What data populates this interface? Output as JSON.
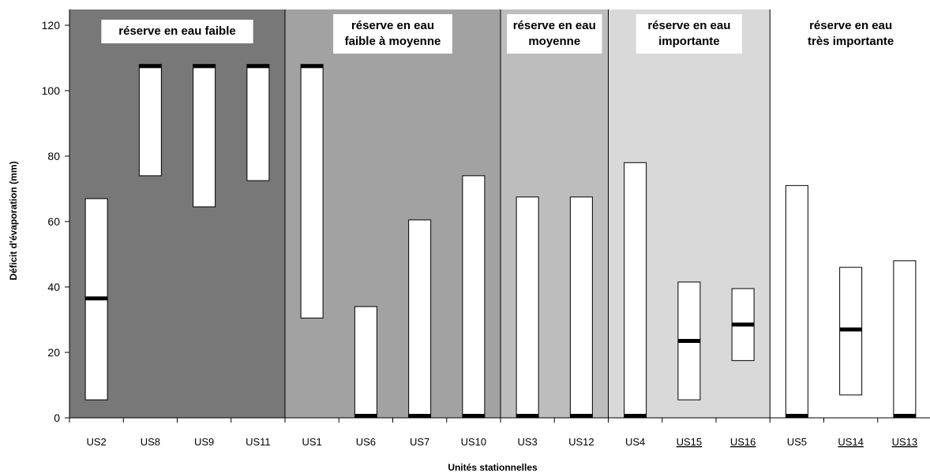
{
  "chart_data": {
    "type": "bar",
    "subtype": "floating-range",
    "ylabel": "Déficit d'évaporation  (mm)",
    "xlabel": "Unités stationnelles",
    "ylim": [
      0,
      120
    ],
    "yticks": [
      0,
      20,
      40,
      60,
      80,
      100,
      120
    ],
    "grid": false,
    "groups": [
      {
        "label_lines": [
          "réserve en eau faible"
        ],
        "label_box": true,
        "color": "#787878",
        "categories": [
          "US2",
          "US8",
          "US9",
          "US11"
        ]
      },
      {
        "label_lines": [
          "réserve en eau",
          "faible à moyenne"
        ],
        "label_box": true,
        "color": "#a2a2a2",
        "categories": [
          "US1",
          "US6",
          "US7",
          "US10"
        ]
      },
      {
        "label_lines": [
          "réserve en eau",
          "moyenne"
        ],
        "label_box": true,
        "color": "#bdbdbd",
        "categories": [
          "US3",
          "US12"
        ]
      },
      {
        "label_lines": [
          "réserve en eau",
          "importante"
        ],
        "label_box": true,
        "color": "#d9d9d9",
        "categories": [
          "US4",
          "US15",
          "US16"
        ]
      },
      {
        "label_lines": [
          "réserve en eau",
          "très importante"
        ],
        "label_box": false,
        "color": "#ffffff",
        "categories": [
          "US5",
          "US14",
          "US13"
        ]
      }
    ],
    "bars": [
      {
        "category": "US2",
        "low": 5.5,
        "high": 67,
        "marker": 36.5,
        "underlined": false
      },
      {
        "category": "US8",
        "low": 74,
        "high": 108,
        "marker": 107.5,
        "underlined": false
      },
      {
        "category": "US9",
        "low": 64.5,
        "high": 108,
        "marker": 107.5,
        "underlined": false
      },
      {
        "category": "US11",
        "low": 72.5,
        "high": 108,
        "marker": 107.5,
        "underlined": false
      },
      {
        "category": "US1",
        "low": 30.5,
        "high": 108,
        "marker": 107.5,
        "underlined": false
      },
      {
        "category": "US6",
        "low": 0,
        "high": 34,
        "marker": 0,
        "underlined": false
      },
      {
        "category": "US7",
        "low": 0,
        "high": 60.5,
        "marker": 0,
        "underlined": false
      },
      {
        "category": "US10",
        "low": 0,
        "high": 74,
        "marker": 0,
        "underlined": false
      },
      {
        "category": "US3",
        "low": 0,
        "high": 67.5,
        "marker": 0,
        "underlined": false
      },
      {
        "category": "US12",
        "low": 0,
        "high": 67.5,
        "marker": 0,
        "underlined": false
      },
      {
        "category": "US4",
        "low": 0,
        "high": 78,
        "marker": 0,
        "underlined": false
      },
      {
        "category": "US15",
        "low": 5.5,
        "high": 41.5,
        "marker": 23.5,
        "underlined": true
      },
      {
        "category": "US16",
        "low": 17.5,
        "high": 39.5,
        "marker": 28.5,
        "underlined": true
      },
      {
        "category": "US5",
        "low": 0,
        "high": 71,
        "marker": 0,
        "underlined": false
      },
      {
        "category": "US14",
        "low": 7,
        "high": 46,
        "marker": 27,
        "underlined": true
      },
      {
        "category": "US13",
        "low": 0,
        "high": 48,
        "marker": 0,
        "underlined": true
      }
    ]
  }
}
